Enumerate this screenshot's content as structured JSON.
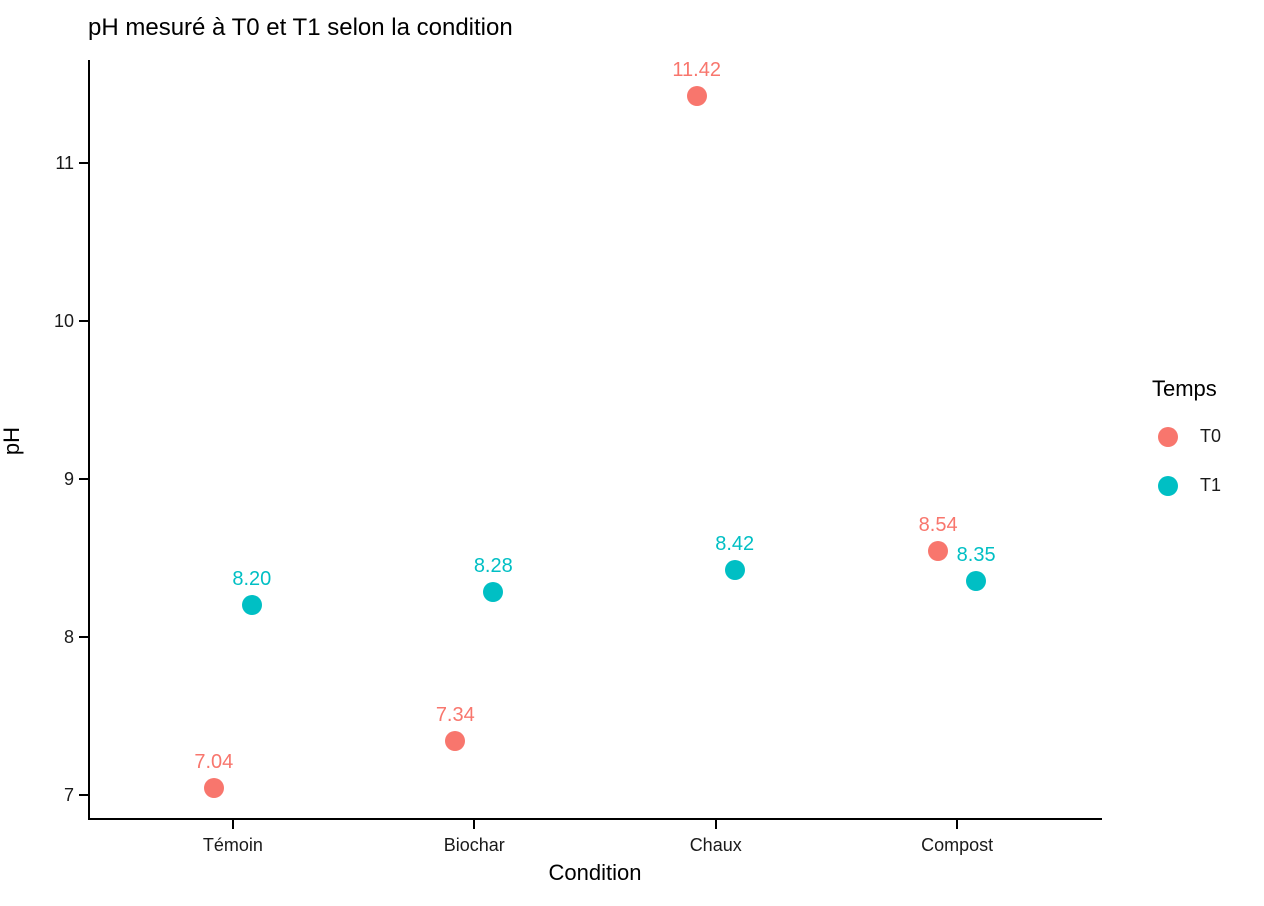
{
  "chart_data": {
    "type": "scatter",
    "title": "pH mesuré à T0 et T1 selon la condition",
    "xlabel": "Condition",
    "ylabel": "pH",
    "categories": [
      "Témoin",
      "Biochar",
      "Chaux",
      "Compost"
    ],
    "series": [
      {
        "name": "T0",
        "color": "#F8766D",
        "values": [
          7.04,
          7.34,
          11.42,
          8.54
        ],
        "labels": [
          "7.04",
          "7.34",
          "11.42",
          "8.54"
        ]
      },
      {
        "name": "T1",
        "color": "#00BFC4",
        "values": [
          8.2,
          8.28,
          8.42,
          8.35
        ],
        "labels": [
          "8.20",
          "8.28",
          "8.42",
          "8.35"
        ]
      }
    ],
    "yticks": [
      7,
      8,
      9,
      10,
      11
    ],
    "ylim": [
      6.84,
      11.65
    ],
    "grid": false,
    "legend": {
      "title": "Temps",
      "position": "right",
      "entries": [
        "T0",
        "T1"
      ]
    }
  }
}
